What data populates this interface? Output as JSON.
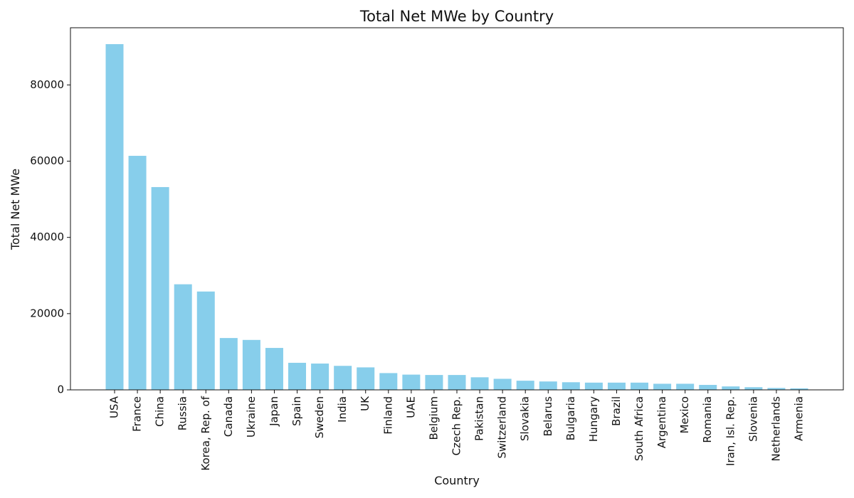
{
  "colors": {
    "bar": "#87CEEB",
    "axis": "#111111",
    "background": "#ffffff"
  },
  "chart_data": {
    "type": "bar",
    "title": "Total Net MWe by Country",
    "xlabel": "Country",
    "ylabel": "Total Net MWe",
    "categories": [
      "USA",
      "France",
      "China",
      "Russia",
      "Korea, Rep. of",
      "Canada",
      "Ukraine",
      "Japan",
      "Spain",
      "Sweden",
      "India",
      "UK",
      "Finland",
      "UAE",
      "Belgium",
      "Czech Rep.",
      "Pakistan",
      "Switzerland",
      "Slovakia",
      "Belarus",
      "Bulgaria",
      "Hungary",
      "Brazil",
      "South Africa",
      "Argentina",
      "Mexico",
      "Romania",
      "Iran, Isl. Rep.",
      "Slovenia",
      "Netherlands",
      "Armenia"
    ],
    "values": [
      90700,
      61400,
      53200,
      27700,
      25800,
      13600,
      13100,
      11000,
      7100,
      6900,
      6300,
      5900,
      4400,
      4000,
      3900,
      3900,
      3300,
      2900,
      2400,
      2200,
      2000,
      1900,
      1900,
      1900,
      1600,
      1600,
      1300,
      900,
      700,
      500,
      400
    ],
    "yticks": [
      0,
      20000,
      40000,
      60000,
      80000
    ],
    "ylim": [
      0,
      95000
    ],
    "grid": false,
    "legend": false
  }
}
